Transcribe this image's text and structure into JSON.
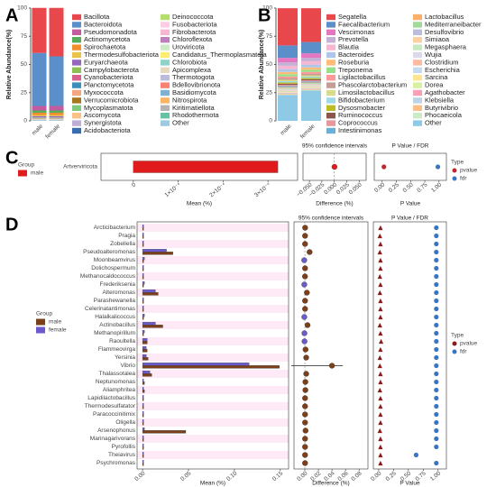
{
  "chart_data": [
    {
      "type": "stacked-bar",
      "label": "A",
      "ylabel": "Relative Abundance(%)",
      "categories": [
        "male",
        "female"
      ],
      "ylim": [
        0,
        100
      ],
      "yticks": [
        0,
        25,
        50,
        75,
        100
      ],
      "series": [
        {
          "name": "Bacillota",
          "color": "#e8474c",
          "values": [
            40,
            43
          ]
        },
        {
          "name": "Bacteroidota",
          "color": "#5a8fc9",
          "values": [
            47,
            44
          ]
        },
        {
          "name": "Pseudomonadota",
          "color": "#c25b9f",
          "values": [
            4,
            4
          ]
        },
        {
          "name": "Actinomycetota",
          "color": "#57ad5a",
          "values": [
            2,
            2
          ]
        },
        {
          "name": "Spirochaetota",
          "color": "#f28e2b",
          "values": [
            2,
            2
          ]
        },
        {
          "name": "Thermodesulfobacteriota",
          "color": "#e9c34a",
          "values": [
            1,
            1
          ]
        },
        {
          "name": "Euryarchaeota",
          "color": "#9467bd",
          "values": [
            1,
            1
          ]
        },
        {
          "name": "Campylobacterota",
          "color": "#8cc152",
          "values": [
            0.2,
            0.2
          ]
        },
        {
          "name": "Cyanobacteriota",
          "color": "#d95f8e",
          "values": [
            0.2,
            0.2
          ]
        },
        {
          "name": "Planctomycetota",
          "color": "#3c8dbc",
          "values": [
            0.2,
            0.2
          ]
        },
        {
          "name": "Myxococcota",
          "color": "#f4a582",
          "values": [
            0.2,
            0.2
          ]
        },
        {
          "name": "Verrucomicrobiota",
          "color": "#a6761d",
          "values": [
            0.2,
            0.2
          ]
        },
        {
          "name": "Mycoplasmatota",
          "color": "#7fc97f",
          "values": [
            0.1,
            0.1
          ]
        },
        {
          "name": "Ascomycota",
          "color": "#fdc086",
          "values": [
            0.1,
            0.1
          ]
        },
        {
          "name": "Synergistota",
          "color": "#beaed4",
          "values": [
            0.1,
            0.1
          ]
        },
        {
          "name": "Acidobacteriota",
          "color": "#386cb0",
          "values": [
            0.1,
            0.1
          ]
        },
        {
          "name": "Deinococcota",
          "color": "#b3de69",
          "values": [
            0.1,
            0.1
          ]
        },
        {
          "name": "Fusobacteriota",
          "color": "#fccde5",
          "values": [
            0.1,
            0.1
          ]
        },
        {
          "name": "Fibrobacterota",
          "color": "#f7b6d2",
          "values": [
            0.1,
            0.1
          ]
        },
        {
          "name": "Chloroflexota",
          "color": "#bc80bd",
          "values": [
            0.1,
            0.1
          ]
        },
        {
          "name": "Uroviricota",
          "color": "#ccebc5",
          "values": [
            0.1,
            0.1
          ]
        },
        {
          "name": "Candidatus_Thermoplasmatota",
          "color": "#ffed6f",
          "values": [
            0.1,
            0.1
          ]
        },
        {
          "name": "Chlorobiota",
          "color": "#8dd3c7",
          "values": [
            0.1,
            0.1
          ]
        },
        {
          "name": "Apicomplexa",
          "color": "#e5d8bd",
          "values": [
            0.1,
            0.1
          ]
        },
        {
          "name": "Thermotogota",
          "color": "#bebada",
          "values": [
            0.1,
            0.1
          ]
        },
        {
          "name": "Bdellovibrionota",
          "color": "#fb8072",
          "values": [
            0.1,
            0.1
          ]
        },
        {
          "name": "Basidiomycota",
          "color": "#80b1d3",
          "values": [
            0.1,
            0.1
          ]
        },
        {
          "name": "Nitrospirota",
          "color": "#fdb462",
          "values": [
            0.1,
            0.1
          ]
        },
        {
          "name": "Kiritimatiellota",
          "color": "#b3b3b3",
          "values": [
            0.1,
            0.1
          ]
        },
        {
          "name": "Rhodothermota",
          "color": "#66c2a5",
          "values": [
            0.1,
            0.1
          ]
        },
        {
          "name": "Other",
          "color": "#9ecae1",
          "values": [
            0.4,
            0.4
          ]
        }
      ]
    },
    {
      "type": "stacked-bar",
      "label": "B",
      "ylabel": "Relative Abundance(%)",
      "categories": [
        "male",
        "female"
      ],
      "ylim": [
        0,
        100
      ],
      "yticks": [
        0,
        25,
        50,
        75,
        100
      ],
      "series": [
        {
          "name": "Segatella",
          "color": "#e8474c",
          "values": [
            33,
            30
          ]
        },
        {
          "name": "Faecalibacterium",
          "color": "#5a8fc9",
          "values": [
            11,
            10
          ]
        },
        {
          "name": "Vescimonas",
          "color": "#e377c2",
          "values": [
            4,
            4
          ]
        },
        {
          "name": "Prevotella",
          "color": "#c5b0d5",
          "values": [
            3,
            3
          ]
        },
        {
          "name": "Blautia",
          "color": "#f7b6d2",
          "values": [
            3,
            3
          ]
        },
        {
          "name": "Bacteroides",
          "color": "#aec7e8",
          "values": [
            2.5,
            2.5
          ]
        },
        {
          "name": "Roseburia",
          "color": "#ffbb78",
          "values": [
            2,
            2
          ]
        },
        {
          "name": "Treponema",
          "color": "#98df8a",
          "values": [
            2,
            2
          ]
        },
        {
          "name": "Ligilactobacillus",
          "color": "#ff9896",
          "values": [
            1.5,
            1.5
          ]
        },
        {
          "name": "Phascolarctobacterium",
          "color": "#c49c94",
          "values": [
            1.5,
            1.5
          ]
        },
        {
          "name": "Limosilactobacillus",
          "color": "#dbdb8d",
          "values": [
            1.2,
            1.2
          ]
        },
        {
          "name": "Bifidobacterium",
          "color": "#9edae5",
          "values": [
            1.2,
            1.2
          ]
        },
        {
          "name": "Dysosmobacter",
          "color": "#bcbd22",
          "values": [
            1,
            1
          ]
        },
        {
          "name": "Ruminococcus",
          "color": "#8c564b",
          "values": [
            1,
            1
          ]
        },
        {
          "name": "Coprococcus",
          "color": "#e7969c",
          "values": [
            1,
            1
          ]
        },
        {
          "name": "Intestinimonas",
          "color": "#6baed6",
          "values": [
            1,
            1
          ]
        },
        {
          "name": "Lactobacillus",
          "color": "#fdae6b",
          "values": [
            0.5,
            0.5
          ]
        },
        {
          "name": "Mediterraneibacter",
          "color": "#a1d99b",
          "values": [
            0.5,
            0.5
          ]
        },
        {
          "name": "Desulfovibrio",
          "color": "#bcbddc",
          "values": [
            0.5,
            0.5
          ]
        },
        {
          "name": "Simiaoa",
          "color": "#fdd0a2",
          "values": [
            0.5,
            0.5
          ]
        },
        {
          "name": "Megasphaera",
          "color": "#c7e9c0",
          "values": [
            0.5,
            0.5
          ]
        },
        {
          "name": "Wujia",
          "color": "#dadaeb",
          "values": [
            0.5,
            0.5
          ]
        },
        {
          "name": "Clostridium",
          "color": "#fcbba1",
          "values": [
            0.5,
            0.5
          ]
        },
        {
          "name": "Escherichia",
          "color": "#c6dbef",
          "values": [
            0.5,
            0.5
          ]
        },
        {
          "name": "Sarcina",
          "color": "#fee391",
          "values": [
            0.5,
            0.5
          ]
        },
        {
          "name": "Dorea",
          "color": "#d9f0a3",
          "values": [
            0.5,
            0.5
          ]
        },
        {
          "name": "Agathobacter",
          "color": "#fa9fb5",
          "values": [
            0.5,
            0.5
          ]
        },
        {
          "name": "Klebsiella",
          "color": "#bfd3e6",
          "values": [
            0.5,
            0.5
          ]
        },
        {
          "name": "Butyrivibrio",
          "color": "#fdbe85",
          "values": [
            0.5,
            0.5
          ]
        },
        {
          "name": "Phocaeicola",
          "color": "#ccebc5",
          "values": [
            0.5,
            0.5
          ]
        },
        {
          "name": "Other",
          "color": "#8ecae6",
          "values": [
            23,
            27
          ]
        }
      ]
    },
    {
      "type": "stamp",
      "label": "C",
      "features": [
        "Artverviricota"
      ],
      "legend_title": "Group",
      "series": [
        {
          "name": "male",
          "color": "#e01b1b",
          "values": [
            0.000322
          ]
        }
      ],
      "xlabel": "Mean (%)",
      "xlim": [
        -7.2e-05,
        0.000366
      ],
      "xticks": [
        0,
        {
          "value": 0.0001,
          "label": "1×10⁻⁴"
        },
        {
          "value": 0.0002,
          "label": "2×10⁻⁴"
        },
        {
          "value": 0.0003,
          "label": "3×10⁻⁴"
        }
      ],
      "difference": {
        "title": "95% confidence intervals",
        "xlabel": "Difference (%)",
        "values": [
          0.0003
        ],
        "ci_low": [
          -0.002
        ],
        "ci_high": [
          0.003
        ],
        "xlim": [
          -0.063,
          0.064
        ],
        "xticks": [
          {
            "value": -0.05,
            "label": "−0.050"
          },
          {
            "value": -0.025,
            "label": "−0.025"
          },
          {
            "value": 0,
            "label": "0.000"
          },
          {
            "value": 0.025,
            "label": "0.025"
          },
          {
            "value": 0.05,
            "label": "0.050"
          }
        ]
      },
      "tests": {
        "title": "P Value / FDR",
        "xlabel": "P Value",
        "legend_title": "Type",
        "xlim": [
          -0.14,
          1.13
        ],
        "xticks": [
          {
            "value": 0,
            "label": "0.00"
          },
          0.25,
          {
            "value": 0.5,
            "label": "0.50"
          },
          0.75,
          {
            "value": 1,
            "label": "1.00"
          }
        ],
        "series": [
          {
            "name": "pvalue",
            "color": "#c0272d",
            "values": [
              0.03
            ]
          },
          {
            "name": "fdr",
            "color": "#3a75c4",
            "values": [
              0.98
            ]
          }
        ]
      }
    },
    {
      "type": "stamp",
      "label": "D",
      "features": [
        "Arcticibacterium",
        "Pragia",
        "Zobellella",
        "Pseudoalteromonas",
        "Moonbeamvirus",
        "Dolichospermum",
        "Methanocaldococcus",
        "Frederiksenia",
        "Alteromonas",
        "Parashewanella",
        "Celerinatantimonas",
        "Halalkalicoccus",
        "Actinobacillus",
        "Methanopirillum",
        "Raoultella",
        "Flammeovirga",
        "Yersinia",
        "Vibrio",
        "Thalassotalea",
        "Neptunomonas",
        "Aliamphritea",
        "Lapidilactobacillus",
        "Thermodesulfatator",
        "Paracoccinitimix",
        "Oligella",
        "Arsenophonus",
        "Marinagarivorans",
        "Pyrofollis",
        "Theiavirus",
        "Psychromonas"
      ],
      "legend_title": "Group",
      "series": [
        {
          "name": "male",
          "color": "#7b3f1a",
          "values": [
            0.001,
            0.001,
            0.001,
            0.033,
            0.001,
            0.001,
            0.001,
            0.001,
            0.017,
            0.001,
            0.001,
            0.001,
            0.022,
            0.001,
            0.005,
            0.005,
            0.006,
            0.149,
            0.01,
            0.002,
            0.002,
            0.001,
            0.001,
            0.001,
            0.001,
            0.047,
            0.001,
            0.001,
            0.001,
            0.001
          ]
        },
        {
          "name": "female",
          "color": "#6a5acd",
          "values": [
            0.001,
            0.001,
            0.001,
            0.026,
            0.002,
            0.001,
            0.001,
            0.002,
            0.014,
            0.001,
            0.001,
            0.002,
            0.014,
            0.002,
            0.005,
            0.004,
            0.004,
            0.116,
            0.008,
            0.001,
            0.001,
            0.001,
            0.001,
            0.001,
            0.001,
            0.002,
            0.001,
            0.001,
            0.001,
            0.001
          ]
        }
      ],
      "xlabel": "Mean (%)",
      "xlim": [
        -0.006,
        0.159
      ],
      "xticks": [
        {
          "value": 0,
          "label": "0.00"
        },
        0.05,
        {
          "value": 0.1,
          "label": "0.10"
        },
        0.15
      ],
      "difference": {
        "title": "95% confidence intervals",
        "xlabel": "Difference (%)",
        "values": [
          0.0004,
          0.0003,
          0.0003,
          0.007,
          -0.0009,
          0.0003,
          0.0002,
          -0.0008,
          0.003,
          0.0003,
          0.0003,
          -0.0008,
          0.004,
          -0.0006,
          -0.0005,
          0.001,
          0.002,
          0.04,
          0.002,
          0.0008,
          0.0008,
          0.0003,
          0.0003,
          0.0003,
          0.0003,
          0.001,
          0.0003,
          0.0003,
          0.0003,
          0.0003
        ],
        "ci_low": [
          -0.0006,
          -0.0007,
          -0.0007,
          0.003,
          -0.002,
          -0.0007,
          -0.0008,
          -0.002,
          0.001,
          -0.0007,
          -0.0007,
          -0.002,
          0.002,
          -0.0016,
          -0.0015,
          -0.001,
          0,
          -0.02,
          0,
          -0.0002,
          -0.0002,
          -0.0007,
          -0.0007,
          -0.0007,
          -0.0007,
          -0.001,
          -0.0007,
          -0.0007,
          -0.0007,
          -0.0007
        ],
        "ci_high": [
          0.0014,
          0.0013,
          0.0013,
          0.011,
          0.0002,
          0.0013,
          0.0012,
          0.0004,
          0.005,
          0.0013,
          0.0013,
          0.0004,
          0.006,
          0.0004,
          0.0005,
          0.003,
          0.004,
          0.056,
          0.004,
          0.0018,
          0.0018,
          0.0013,
          0.0013,
          0.0013,
          0.0013,
          0.003,
          0.0013,
          0.0013,
          0.0013,
          0.0013
        ],
        "xlim": [
          -0.016,
          0.093
        ],
        "xticks": [
          {
            "value": 0,
            "label": "0.00"
          },
          0.02,
          0.04,
          0.06,
          0.08
        ]
      },
      "tests": {
        "title": "P Value / FDR",
        "xlabel": "P Value",
        "legend_title": "Type",
        "xlim": [
          -0.09,
          1.14
        ],
        "xticks": [
          {
            "value": 0,
            "label": "0.00"
          },
          0.25,
          {
            "value": 0.5,
            "label": "0.50"
          },
          0.75,
          {
            "value": 1,
            "label": "1.00"
          }
        ],
        "series": [
          {
            "name": "pvalue",
            "color": "#8b1a1a",
            "values": [
              0.03,
              0.02,
              0.03,
              0.02,
              0.03,
              0.03,
              0.02,
              0.03,
              0.02,
              0.03,
              0.03,
              0.03,
              0.02,
              0.03,
              0.04,
              0.03,
              0.02,
              0.02,
              0.03,
              0.03,
              0.02,
              0.03,
              0.03,
              0.03,
              0.03,
              0.02,
              0.03,
              0.03,
              0.03,
              0.03
            ]
          },
          {
            "name": "fdr",
            "color": "#3a75c4",
            "values": [
              0.97,
              0.97,
              0.97,
              0.97,
              0.97,
              0.97,
              0.97,
              0.97,
              0.97,
              0.97,
              0.97,
              0.97,
              0.97,
              0.97,
              0.97,
              0.97,
              0.97,
              0.97,
              0.97,
              0.97,
              0.97,
              0.97,
              0.97,
              0.97,
              0.97,
              0.97,
              0.97,
              0.97,
              0.63,
              0.97
            ]
          }
        ]
      }
    }
  ]
}
